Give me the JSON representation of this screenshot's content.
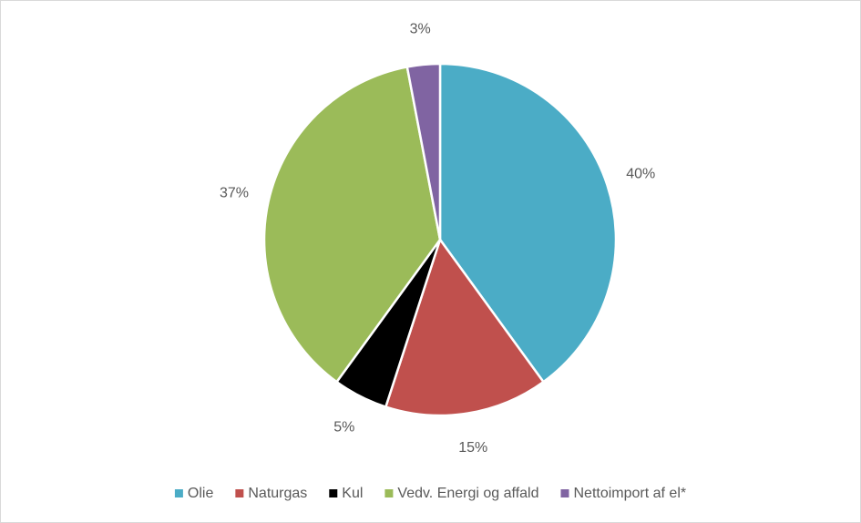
{
  "chart_data": {
    "type": "pie",
    "categories": [
      "Olie",
      "Naturgas",
      "Kul",
      "Vedv. Energi og affald",
      "Nettoimport af el*"
    ],
    "values": [
      40,
      15,
      5,
      37,
      3
    ],
    "value_labels": [
      "40%",
      "15%",
      "5%",
      "37%",
      "3%"
    ],
    "colors": [
      "#4bacc6",
      "#c0504d",
      "#000000",
      "#9bbb59",
      "#8064a2"
    ],
    "legend": "bottom"
  }
}
